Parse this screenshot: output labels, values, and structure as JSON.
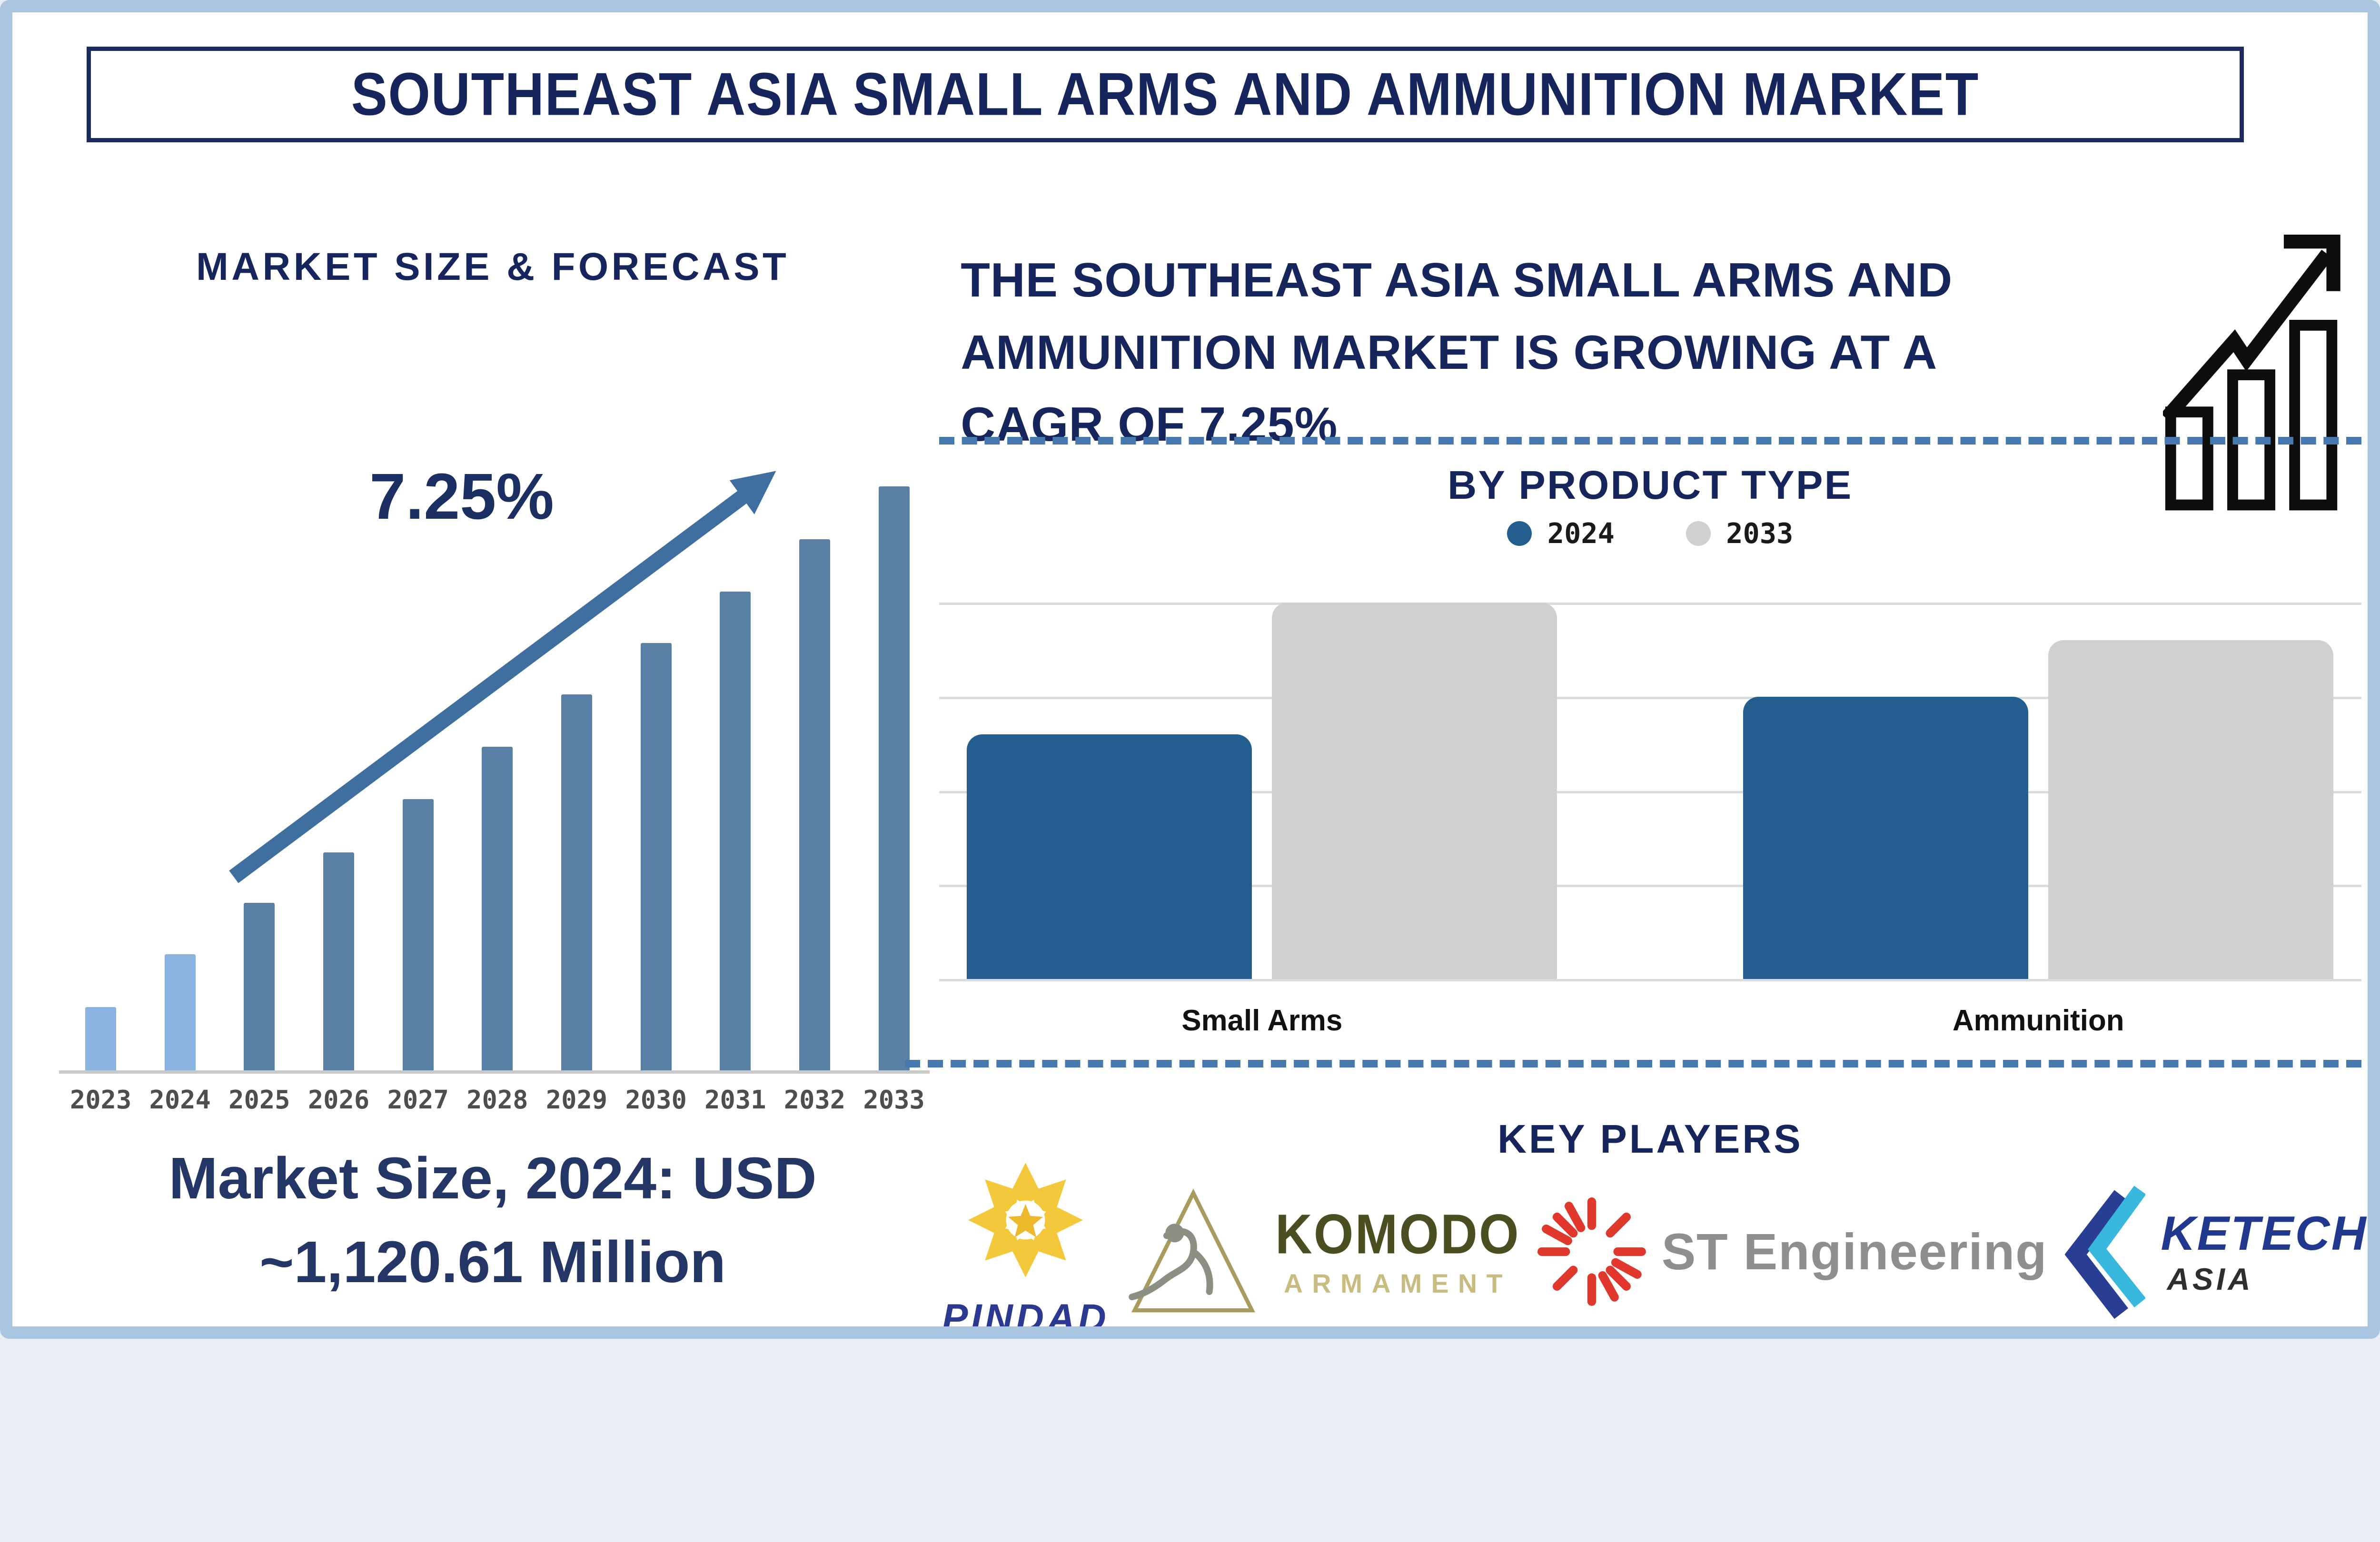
{
  "frame": {
    "border_color": "#A9C5DF",
    "background": "#FFFFFF",
    "title_box_border": "#1B2B5E"
  },
  "title": {
    "text": "SOUTHEAST ASIA SMALL ARMS AND AMMUNITION MARKET",
    "color": "#16265C"
  },
  "left_panel": {
    "heading": "MARKET SIZE & FORECAST",
    "cagr_label": "7.25%",
    "trend_arrow_icon": "rising-arrow-icon",
    "arrow_color": "#3E6F9F",
    "market_size_line1": "Market Size, 2024: USD",
    "market_size_line2": "~1,120.61 Million"
  },
  "right_panel": {
    "growth": {
      "lines": [
        "THE SOUTHEAST ASIA SMALL ARMS AND",
        "AMMUNITION MARKET IS GROWING AT A",
        "CAGR OF 7.25%"
      ]
    },
    "growth_icon": "bar-chart-rising-arrow-icon",
    "separator_style": {
      "type": "dashed",
      "color": "#4879AE"
    },
    "key_players_heading": "KEY PLAYERS",
    "key_players": [
      {
        "name": "PINDAD",
        "wordmark": "PINDAD",
        "icon": "gold-starburst-star-icon",
        "colors": {
          "icon": "#F4C83B",
          "text": "#2B3990"
        }
      },
      {
        "name": "Komodo Armament",
        "wordmark_line1": "KOMODO",
        "wordmark_line2": "ARMAMENT",
        "icon": "triangle-komodo-dragon-icon",
        "colors": {
          "triangle": "#A79B5E",
          "dragon": "#8C9083",
          "text1": "#4A4E20",
          "text2": "#C9BC80"
        }
      },
      {
        "name": "ST Engineering",
        "wordmark": "ST Engineering",
        "icon": "red-sunburst-icon",
        "colors": {
          "icon": "#E0382D",
          "text": "#8F8F8F"
        }
      },
      {
        "name": "KETech Asia",
        "wordmark_line1": "KETECH",
        "wordmark_line2": "ASIA",
        "icon": "double-chevron-left-icon",
        "colors": {
          "chevron_outer": "#273E92",
          "chevron_inner": "#39B8DE",
          "text1": "#20398F",
          "text2": "#2E2E2E"
        }
      }
    ]
  },
  "chart_data": [
    {
      "id": "market_size_forecast",
      "type": "bar",
      "title": "MARKET SIZE & FORECAST",
      "categories": [
        "2023",
        "2024",
        "2025",
        "2026",
        "2027",
        "2028",
        "2029",
        "2030",
        "2031",
        "2032",
        "2033"
      ],
      "values": [
        10.6,
        19.5,
        28.1,
        36.6,
        45.5,
        54.3,
        63.1,
        71.7,
        80.3,
        89.1,
        97.9
      ],
      "unit": "relative_height_pct",
      "labeled_value_2024": "USD ~1,120.61 Million",
      "annotation": {
        "text": "7.25%",
        "meaning": "CAGR shown with rising arrow"
      },
      "highlight_first_n": 2,
      "colors": {
        "historical": "#8AB3DF",
        "forecast": "#5B80A5"
      },
      "axis_line_color": "#C9C9C9",
      "tick_label_color": "#4E4E4E",
      "gridlines": false,
      "legend_position": "none"
    },
    {
      "id": "by_product_type",
      "type": "bar",
      "title": "BY PRODUCT TYPE",
      "categories": [
        "Small Arms",
        "Ammunition"
      ],
      "series": [
        {
          "name": "2024",
          "color": "#235E8E",
          "values": [
            65,
            75
          ]
        },
        {
          "name": "2033",
          "color": "#D0D0D0",
          "values": [
            100,
            90
          ]
        }
      ],
      "unit": "relative_height_pct",
      "gridline_count": 5,
      "gridline_color": "#DBDBDB",
      "gridlines": true,
      "legend_position": "top"
    }
  ]
}
